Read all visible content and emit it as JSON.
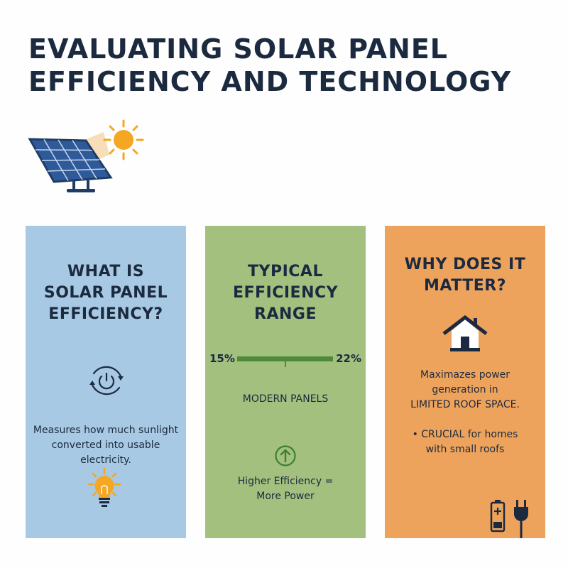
{
  "title_lines": [
    "EVALUATING SOLAR PANEL",
    "EFFICIENCY AND TECHNOLOGY"
  ],
  "hero_icon": "solar-panel-with-sun-icon",
  "colors": {
    "title": "#1c2a3f",
    "blue_card": "#a7c9e3",
    "green_card": "#a3c07f",
    "orange_card": "#eea35c",
    "bar": "#4f8a3a",
    "sun": "#f5a623"
  },
  "cards": [
    {
      "heading_lines": [
        "WHAT IS",
        "SOLAR PANEL",
        "EFFICIENCY?"
      ],
      "icon": "power-cycle-icon",
      "text_lines": [
        "Measures how much sunlight",
        "converted into usable electricity."
      ],
      "bottom_icon": "lightbulb-icon"
    },
    {
      "heading_lines": [
        "TYPICAL",
        "EFFICIENCY",
        "RANGE"
      ],
      "range": {
        "min_label": "15%",
        "max_label": "22%",
        "min": 15,
        "max": 22
      },
      "range_caption": "MODERN PANELS",
      "icon": "up-arrow-circle-icon",
      "text_lines": [
        "Higher Efficiency =",
        "More Power"
      ]
    },
    {
      "heading_lines": [
        "WHY DOES IT",
        "MATTER?"
      ],
      "icon": "house-icon",
      "text_lines": [
        "Maximazes power",
        "generation in",
        "LIMITED ROOF SPACE."
      ],
      "bullet_lines": [
        "• CRUCIAL for homes",
        "with small roofs"
      ],
      "bottom_icons": [
        "battery-icon",
        "plug-icon"
      ]
    }
  ]
}
